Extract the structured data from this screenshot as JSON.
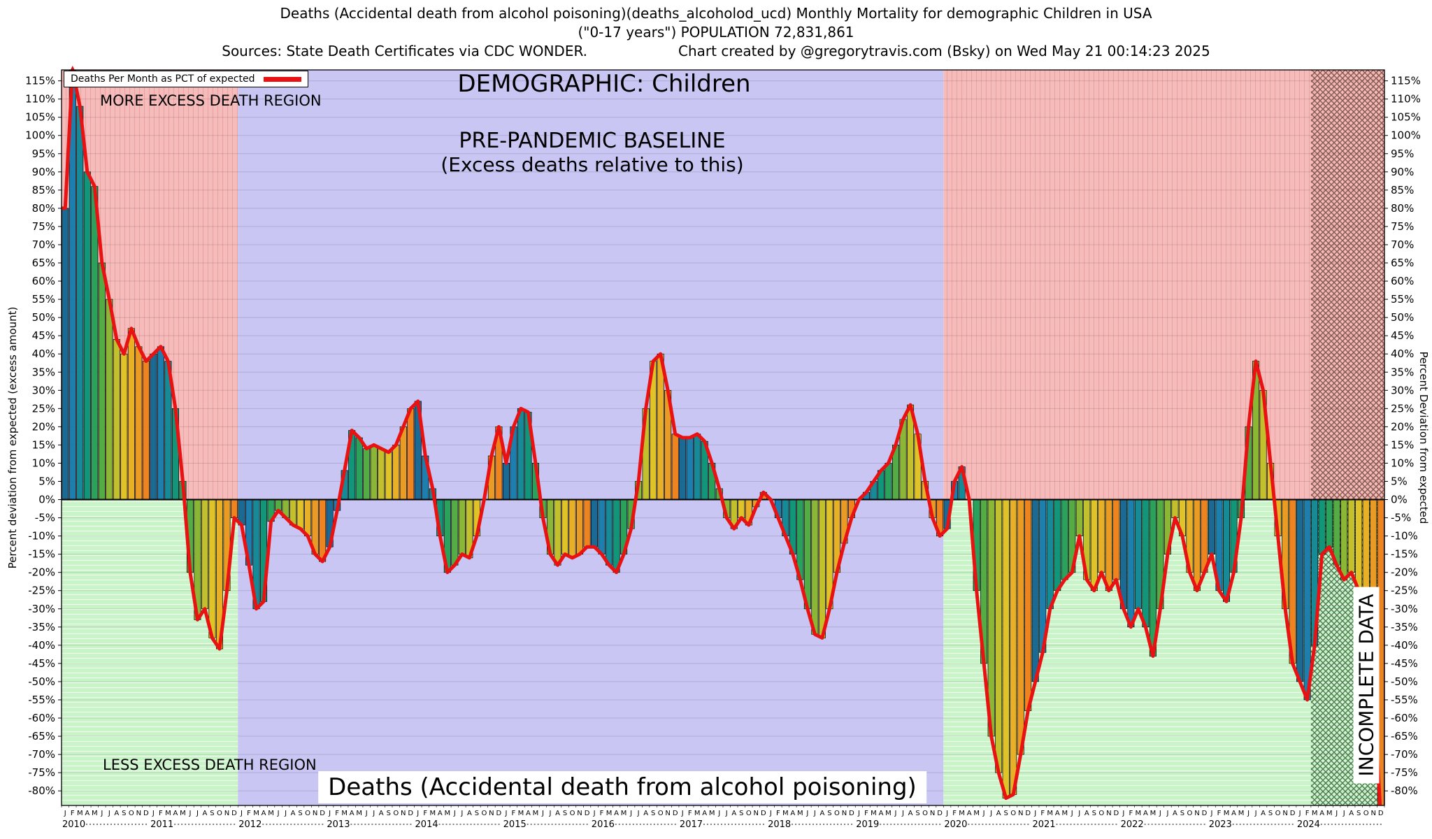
{
  "header": {
    "title_line1": "Deaths (Accidental death from alcohol poisoning)(deaths_alcoholod_ucd) Monthly Mortality for demographic Children in USA",
    "title_line2": "(\"0-17 years\") POPULATION 72,831,861",
    "sources": "Sources: State Death Certificates via CDC WONDER.",
    "credit": "Chart created by @gregorytravis.com (Bsky) on Wed May 21 00:14:23 2025"
  },
  "legend": {
    "label": "Deaths Per Month as PCT of expected"
  },
  "annotations": {
    "more_excess": "MORE EXCESS DEATH REGION",
    "demographic": "DEMOGRAPHIC: Children",
    "baseline_title": "PRE-PANDEMIC BASELINE",
    "baseline_sub": "(Excess deaths relative to this)",
    "less_excess": "LESS EXCESS DEATH REGION",
    "cause": "Deaths (Accidental death from alcohol poisoning)",
    "incomplete": "INCOMPLETE DATA"
  },
  "axes": {
    "left_label": "Percent deviation from expected (excess amount)",
    "right_label": "Percent Deviation from expected",
    "y_min": -80,
    "y_max": 115,
    "y_step": 5,
    "month_letters": [
      "J",
      "F",
      "M",
      "A",
      "M",
      "J",
      "J",
      "A",
      "S",
      "O",
      "N",
      "D"
    ]
  },
  "chart_data": {
    "type": "bar+line",
    "title": "Monthly deaths as percent deviation from expected (excess deaths), Children 0-17, USA",
    "unit": "percent",
    "start_year": 2010,
    "end_year": 2024,
    "ylim": [
      -80,
      115
    ],
    "y_tick_step": 5,
    "legend_position": "top-left",
    "grid": true,
    "regions": {
      "baseline_start_month_index": 24,
      "baseline_end_month_index": 120,
      "incomplete_start_month_index": 170
    },
    "series": [
      {
        "name": "Deaths Per Month as PCT of expected",
        "values": [
          80,
          118,
          108,
          90,
          86,
          65,
          55,
          44,
          40,
          47,
          42,
          38,
          40,
          42,
          38,
          25,
          5,
          -20,
          -33,
          -30,
          -38,
          -41,
          -25,
          -5,
          -7,
          -18,
          -30,
          -28,
          -6,
          -3,
          -5,
          -7,
          -8,
          -10,
          -15,
          -17,
          -13,
          -3,
          8,
          19,
          17,
          14,
          15,
          14,
          13,
          15,
          20,
          25,
          27,
          12,
          3,
          -10,
          -20,
          -18,
          -15,
          -16,
          -10,
          0,
          12,
          20,
          10,
          20,
          25,
          24,
          10,
          -5,
          -15,
          -18,
          -15,
          -16,
          -15,
          -13,
          -13,
          -15,
          -18,
          -20,
          -15,
          -8,
          5,
          25,
          38,
          40,
          30,
          18,
          17,
          17,
          18,
          16,
          10,
          3,
          -5,
          -8,
          -5,
          -7,
          -2,
          2,
          0,
          -5,
          -10,
          -15,
          -22,
          -30,
          -37,
          -38,
          -30,
          -20,
          -12,
          -5,
          0,
          2,
          5,
          8,
          10,
          15,
          22,
          26,
          18,
          5,
          -5,
          -10,
          -8,
          5,
          9,
          0,
          -25,
          -45,
          -65,
          -75,
          -82,
          -81,
          -70,
          -58,
          -50,
          -42,
          -30,
          -25,
          -22,
          -20,
          -10,
          -22,
          -25,
          -20,
          -25,
          -22,
          -30,
          -35,
          -30,
          -35,
          -43,
          -30,
          -15,
          -5,
          -10,
          -20,
          -25,
          -20,
          -15,
          -25,
          -28,
          -20,
          -5,
          20,
          38,
          30,
          10,
          -10,
          -30,
          -45,
          -50,
          -55,
          -40,
          -15,
          -13,
          -18,
          -22,
          -20,
          -25,
          -30,
          -50,
          -88
        ]
      }
    ],
    "colors": {
      "line": "#e81212",
      "more_excess_bg": "#f6bcbc",
      "more_excess_hatch": "#eaa2a2",
      "less_excess_bg": "#c8f4c8",
      "less_excess_hatch": "#ffffff",
      "baseline_bg": "#c9c6f4",
      "incomplete_above_hatch": "#5f3a2a",
      "incomplete_below_hatch": "#2e5a33",
      "month_palette": [
        "#1b6a93",
        "#1d7fae",
        "#168a96",
        "#12967a",
        "#2aa25c",
        "#55ac44",
        "#8cb736",
        "#c2c02c",
        "#e0c328",
        "#e7b026",
        "#ea9b23",
        "#ed8420"
      ]
    }
  }
}
